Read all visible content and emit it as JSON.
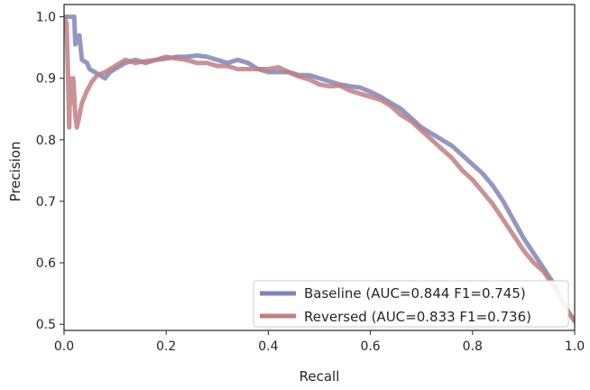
{
  "chart_data": {
    "type": "line",
    "title": "",
    "xlabel": "Recall",
    "ylabel": "Precision",
    "xlim": [
      0.0,
      1.0
    ],
    "ylim": [
      0.49,
      1.02
    ],
    "xticks": [
      "0.0",
      "0.2",
      "0.4",
      "0.6",
      "0.8",
      "1.0"
    ],
    "yticks": [
      "0.5",
      "0.6",
      "0.7",
      "0.8",
      "0.9",
      "1.0"
    ],
    "grid": false,
    "legend_position": "bottom-right",
    "series": [
      {
        "name": "Baseline (AUC=0.844 F1=0.745)",
        "color": "#8185b6",
        "points": [
          [
            0.0,
            1.0
          ],
          [
            0.02,
            1.0
          ],
          [
            0.022,
            0.955
          ],
          [
            0.03,
            0.97
          ],
          [
            0.035,
            0.93
          ],
          [
            0.045,
            0.925
          ],
          [
            0.05,
            0.915
          ],
          [
            0.06,
            0.91
          ],
          [
            0.07,
            0.905
          ],
          [
            0.08,
            0.9
          ],
          [
            0.09,
            0.91
          ],
          [
            0.1,
            0.915
          ],
          [
            0.12,
            0.925
          ],
          [
            0.14,
            0.93
          ],
          [
            0.16,
            0.925
          ],
          [
            0.18,
            0.93
          ],
          [
            0.2,
            0.932
          ],
          [
            0.22,
            0.935
          ],
          [
            0.24,
            0.935
          ],
          [
            0.26,
            0.937
          ],
          [
            0.28,
            0.935
          ],
          [
            0.3,
            0.93
          ],
          [
            0.32,
            0.925
          ],
          [
            0.34,
            0.93
          ],
          [
            0.36,
            0.925
          ],
          [
            0.38,
            0.915
          ],
          [
            0.4,
            0.91
          ],
          [
            0.42,
            0.91
          ],
          [
            0.44,
            0.91
          ],
          [
            0.46,
            0.905
          ],
          [
            0.48,
            0.905
          ],
          [
            0.5,
            0.9
          ],
          [
            0.52,
            0.895
          ],
          [
            0.54,
            0.89
          ],
          [
            0.56,
            0.887
          ],
          [
            0.58,
            0.885
          ],
          [
            0.6,
            0.878
          ],
          [
            0.62,
            0.87
          ],
          [
            0.64,
            0.86
          ],
          [
            0.66,
            0.85
          ],
          [
            0.68,
            0.835
          ],
          [
            0.7,
            0.82
          ],
          [
            0.72,
            0.81
          ],
          [
            0.74,
            0.8
          ],
          [
            0.76,
            0.79
          ],
          [
            0.78,
            0.775
          ],
          [
            0.8,
            0.76
          ],
          [
            0.82,
            0.745
          ],
          [
            0.84,
            0.725
          ],
          [
            0.86,
            0.7
          ],
          [
            0.88,
            0.67
          ],
          [
            0.9,
            0.64
          ],
          [
            0.92,
            0.615
          ],
          [
            0.94,
            0.59
          ],
          [
            0.96,
            0.565
          ],
          [
            0.98,
            0.53
          ],
          [
            1.0,
            0.505
          ]
        ]
      },
      {
        "name": "Reversed (AUC=0.833 F1=0.736)",
        "color": "#c07f83",
        "points": [
          [
            0.0,
            1.0
          ],
          [
            0.005,
            0.99
          ],
          [
            0.008,
            0.9
          ],
          [
            0.01,
            0.82
          ],
          [
            0.012,
            0.9
          ],
          [
            0.015,
            0.86
          ],
          [
            0.018,
            0.9
          ],
          [
            0.022,
            0.84
          ],
          [
            0.025,
            0.82
          ],
          [
            0.028,
            0.83
          ],
          [
            0.035,
            0.86
          ],
          [
            0.045,
            0.88
          ],
          [
            0.055,
            0.895
          ],
          [
            0.065,
            0.905
          ],
          [
            0.08,
            0.91
          ],
          [
            0.1,
            0.92
          ],
          [
            0.12,
            0.93
          ],
          [
            0.14,
            0.925
          ],
          [
            0.16,
            0.928
          ],
          [
            0.18,
            0.93
          ],
          [
            0.2,
            0.935
          ],
          [
            0.22,
            0.932
          ],
          [
            0.24,
            0.93
          ],
          [
            0.26,
            0.925
          ],
          [
            0.28,
            0.925
          ],
          [
            0.3,
            0.92
          ],
          [
            0.32,
            0.92
          ],
          [
            0.34,
            0.915
          ],
          [
            0.36,
            0.915
          ],
          [
            0.38,
            0.915
          ],
          [
            0.4,
            0.915
          ],
          [
            0.42,
            0.918
          ],
          [
            0.44,
            0.91
          ],
          [
            0.46,
            0.903
          ],
          [
            0.48,
            0.898
          ],
          [
            0.5,
            0.89
          ],
          [
            0.52,
            0.887
          ],
          [
            0.54,
            0.888
          ],
          [
            0.56,
            0.88
          ],
          [
            0.58,
            0.875
          ],
          [
            0.6,
            0.87
          ],
          [
            0.62,
            0.865
          ],
          [
            0.64,
            0.855
          ],
          [
            0.66,
            0.84
          ],
          [
            0.68,
            0.83
          ],
          [
            0.7,
            0.815
          ],
          [
            0.72,
            0.8
          ],
          [
            0.74,
            0.785
          ],
          [
            0.76,
            0.77
          ],
          [
            0.78,
            0.75
          ],
          [
            0.8,
            0.735
          ],
          [
            0.82,
            0.715
          ],
          [
            0.84,
            0.695
          ],
          [
            0.86,
            0.67
          ],
          [
            0.88,
            0.645
          ],
          [
            0.9,
            0.62
          ],
          [
            0.92,
            0.6
          ],
          [
            0.94,
            0.585
          ],
          [
            0.96,
            0.56
          ],
          [
            0.98,
            0.53
          ],
          [
            1.0,
            0.505
          ]
        ]
      }
    ]
  }
}
